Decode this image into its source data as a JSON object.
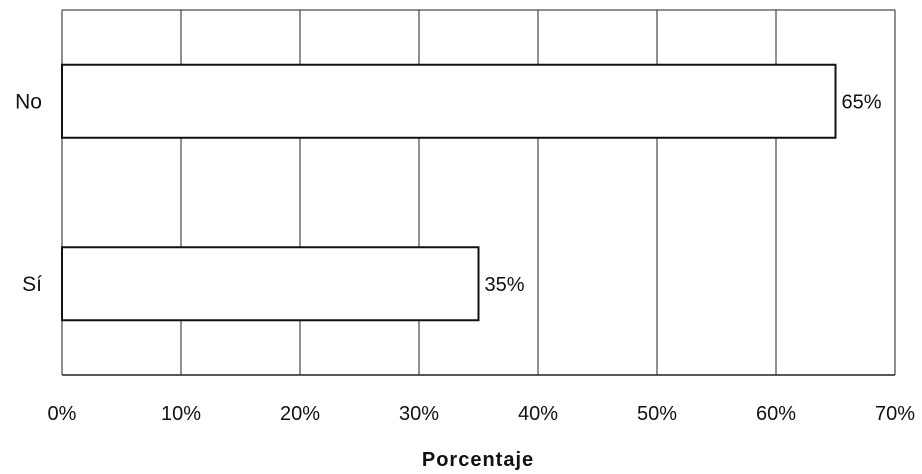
{
  "chart_data": {
    "type": "bar",
    "orientation": "horizontal",
    "categories": [
      "Sí",
      "No"
    ],
    "values": [
      35,
      65
    ],
    "data_labels": [
      "35%",
      "65%"
    ],
    "title": "",
    "xlabel": "Porcentaje",
    "ylabel": "",
    "xlim": [
      0,
      70
    ],
    "x_ticks": [
      0,
      10,
      20,
      30,
      40,
      50,
      60,
      70
    ],
    "x_tick_labels": [
      "0%",
      "10%",
      "20%",
      "30%",
      "40%",
      "50%",
      "60%",
      "70%"
    ],
    "grid": "vertical",
    "legend": "none",
    "colors": {
      "bar_fill": "#ffffff",
      "bar_stroke": "#111111",
      "grid": "#222222"
    }
  }
}
